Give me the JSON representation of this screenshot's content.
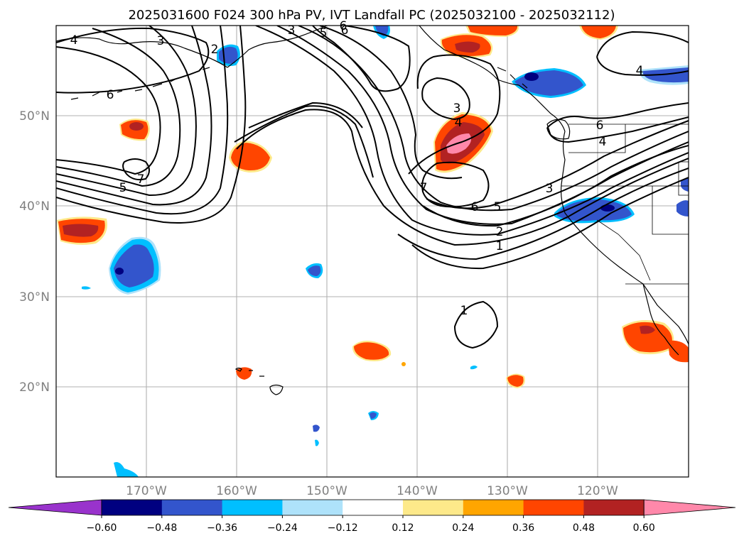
{
  "title": "2025031600 F024 300 hPa PV, IVT Landfall PC (2025032100 - 2025032112)",
  "lon_ticks": [
    "170°W",
    "160°W",
    "150°W",
    "140°W",
    "130°W",
    "120°W"
  ],
  "lat_ticks": [
    "50°N",
    "40°N",
    "30°N",
    "20°N"
  ],
  "colorbar": {
    "colors": [
      "#9933cc",
      "#000080",
      "#3355cc",
      "#00bfff",
      "#aee2fa",
      "#ffffff",
      "#fde98a",
      "#ffa500",
      "#ff4500",
      "#b22222",
      "#ff88aa"
    ],
    "tick_labels": [
      "−0.60",
      "−0.48",
      "−0.36",
      "−0.24",
      "−0.12",
      "0.12",
      "0.24",
      "0.36",
      "0.48",
      "0.60"
    ]
  },
  "contour_labels": [
    "4",
    "3",
    "2",
    "6",
    "7",
    "5",
    "3",
    "6",
    "5",
    "6",
    "3",
    "4",
    "7",
    "6",
    "5",
    "2",
    "1",
    "1",
    "4",
    "6",
    "4",
    "3"
  ],
  "chart_data": {
    "type": "map",
    "projection": "platecarree-like",
    "extent": {
      "lon_min": -180,
      "lon_max": -110,
      "lat_min": 10,
      "lat_max": 60
    },
    "fields": {
      "filled": "IVT landfall principal component correlation (shaded)",
      "contours": "300 hPa potential vorticity (PVU)"
    },
    "contour_levels": [
      1,
      2,
      3,
      4,
      5,
      6,
      7
    ],
    "shading_levels": [
      -0.6,
      -0.48,
      -0.36,
      -0.24,
      -0.12,
      0.12,
      0.24,
      0.36,
      0.48,
      0.6
    ],
    "grid": true
  }
}
